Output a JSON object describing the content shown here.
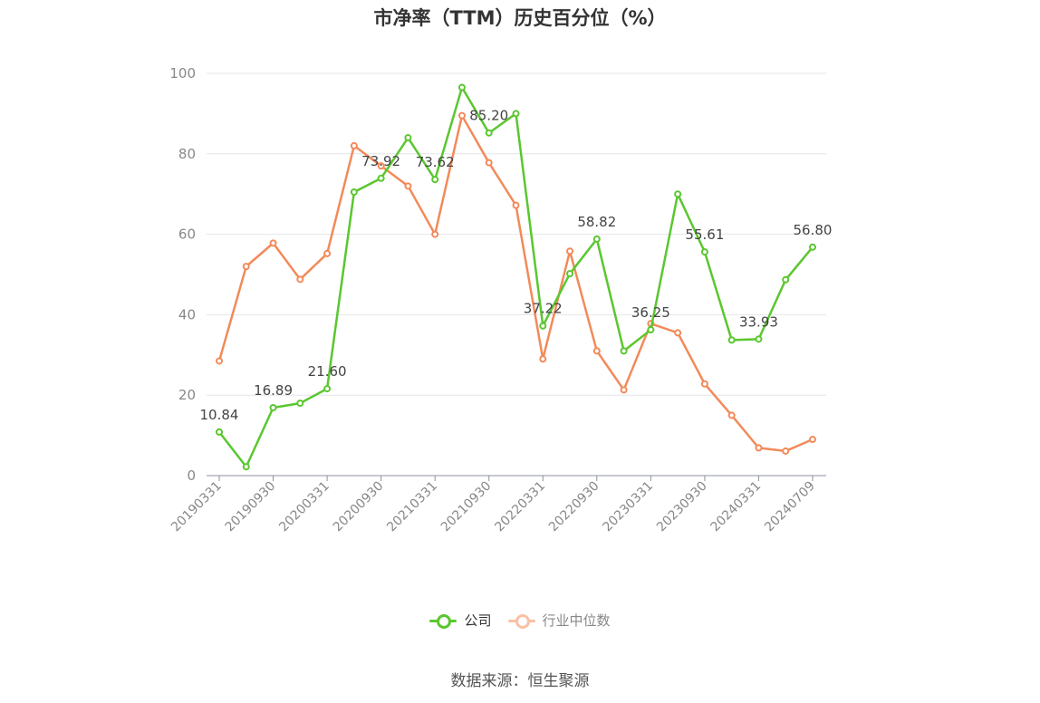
{
  "chart_data": {
    "type": "line",
    "title": "市净率（TTM）历史百分位（%）",
    "xlabel": "",
    "ylabel": "",
    "ylim": [
      0,
      100
    ],
    "yticks": [
      "0",
      "20",
      "40",
      "60",
      "80",
      "100"
    ],
    "grid": true,
    "legend_position": "bottom-center",
    "x": [
      "20190331",
      "20190630",
      "20190930",
      "20191231",
      "20200331",
      "20200630",
      "20200930",
      "20201231",
      "20210331",
      "20210630",
      "20210930",
      "20211231",
      "20220331",
      "20220630",
      "20220930",
      "20221231",
      "20230331",
      "20230630",
      "20230930",
      "20231231",
      "20240331",
      "20240630",
      "20240709"
    ],
    "xticks_shown": [
      "20190331",
      "20190930",
      "20200331",
      "20200930",
      "20210331",
      "20210930",
      "20220331",
      "20220930",
      "20230331",
      "20230930",
      "20240331",
      "20240709"
    ],
    "series": [
      {
        "name": "公司",
        "color": "#5ac72f",
        "values": [
          10.84,
          2.2,
          16.89,
          18.0,
          21.6,
          70.5,
          73.92,
          84.0,
          73.62,
          96.5,
          85.2,
          90.0,
          37.22,
          50.2,
          58.82,
          31.0,
          36.25,
          70.0,
          55.61,
          33.7,
          33.93,
          48.7,
          56.8
        ],
        "labels": {
          "0": "10.84",
          "2": "16.89",
          "4": "21.60",
          "6": "73.92",
          "8": "73.62",
          "10": "85.20",
          "12": "37.22",
          "14": "58.82",
          "16": "36.25",
          "18": "55.61",
          "20": "33.93",
          "22": "56.80"
        }
      },
      {
        "name": "行业中位数",
        "color": "#f28a5a",
        "values": [
          28.5,
          52.0,
          57.8,
          48.8,
          55.2,
          82.0,
          77.0,
          72.0,
          60.0,
          89.5,
          77.8,
          67.2,
          29.0,
          55.8,
          31.0,
          21.3,
          37.8,
          35.5,
          22.8,
          15.0,
          6.9,
          6.1,
          9.0
        ]
      }
    ],
    "source": "数据来源：恒生聚源"
  }
}
